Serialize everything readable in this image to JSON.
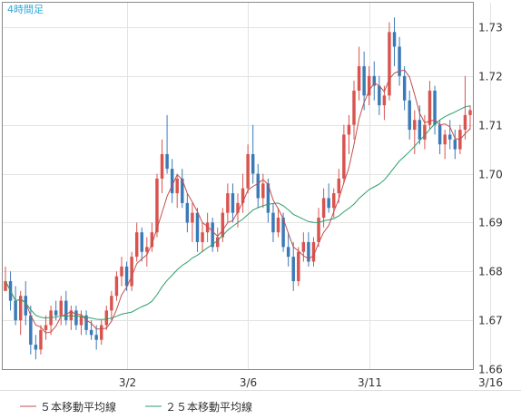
{
  "timeframe_label": "4時間足",
  "legend": [
    {
      "label": "５本移動平均線",
      "color": "#c0504d"
    },
    {
      "label": "２５本移動平均線",
      "color": "#2e9e6b"
    }
  ],
  "colors": {
    "bull": "#d9534f",
    "bear": "#3a7ab8",
    "grid": "#e3e3e3",
    "frame": "#888888"
  },
  "chart_data": {
    "type": "candlestick",
    "ylim": [
      1.66,
      1.735
    ],
    "yticks": [
      1.66,
      1.67,
      1.68,
      1.69,
      1.7,
      1.71,
      1.72,
      1.73
    ],
    "x_tick_labels": [
      {
        "label": "3/2",
        "index": 24
      },
      {
        "label": "3/6",
        "index": 48
      },
      {
        "label": "3/11",
        "index": 72
      },
      {
        "label": "3/16",
        "index": 96
      }
    ],
    "candles": [
      [
        1.676,
        1.681,
        1.676,
        1.678
      ],
      [
        1.678,
        1.68,
        1.672,
        1.674
      ],
      [
        1.674,
        1.677,
        1.669,
        1.67
      ],
      [
        1.67,
        1.676,
        1.667,
        1.675
      ],
      [
        1.675,
        1.678,
        1.669,
        1.671
      ],
      [
        1.671,
        1.673,
        1.663,
        1.665
      ],
      [
        1.665,
        1.667,
        1.662,
        1.664
      ],
      [
        1.664,
        1.669,
        1.663,
        1.668
      ],
      [
        1.668,
        1.671,
        1.666,
        1.669
      ],
      [
        1.669,
        1.673,
        1.667,
        1.672
      ],
      [
        1.672,
        1.674,
        1.67,
        1.671
      ],
      [
        1.671,
        1.675,
        1.669,
        1.674
      ],
      [
        1.674,
        1.676,
        1.669,
        1.67
      ],
      [
        1.67,
        1.673,
        1.668,
        1.672
      ],
      [
        1.672,
        1.673,
        1.668,
        1.669
      ],
      [
        1.669,
        1.672,
        1.667,
        1.671
      ],
      [
        1.671,
        1.672,
        1.667,
        1.668
      ],
      [
        1.668,
        1.67,
        1.666,
        1.667
      ],
      [
        1.667,
        1.669,
        1.664,
        1.666
      ],
      [
        1.666,
        1.67,
        1.665,
        1.669
      ],
      [
        1.669,
        1.673,
        1.668,
        1.672
      ],
      [
        1.672,
        1.676,
        1.67,
        1.675
      ],
      [
        1.675,
        1.68,
        1.674,
        1.679
      ],
      [
        1.679,
        1.683,
        1.677,
        1.681
      ],
      [
        1.681,
        1.682,
        1.676,
        1.677
      ],
      [
        1.677,
        1.684,
        1.676,
        1.683
      ],
      [
        1.683,
        1.69,
        1.682,
        1.688
      ],
      [
        1.688,
        1.689,
        1.682,
        1.684
      ],
      [
        1.684,
        1.687,
        1.681,
        1.685
      ],
      [
        1.685,
        1.69,
        1.684,
        1.688
      ],
      [
        1.688,
        1.7,
        1.687,
        1.699
      ],
      [
        1.699,
        1.707,
        1.696,
        1.704
      ],
      [
        1.704,
        1.712,
        1.7,
        1.701
      ],
      [
        1.701,
        1.703,
        1.694,
        1.696
      ],
      [
        1.696,
        1.7,
        1.693,
        1.699
      ],
      [
        1.699,
        1.701,
        1.693,
        1.694
      ],
      [
        1.694,
        1.696,
        1.688,
        1.69
      ],
      [
        1.69,
        1.694,
        1.686,
        1.692
      ],
      [
        1.692,
        1.693,
        1.684,
        1.686
      ],
      [
        1.686,
        1.69,
        1.684,
        1.688
      ],
      [
        1.688,
        1.692,
        1.686,
        1.69
      ],
      [
        1.69,
        1.691,
        1.684,
        1.685
      ],
      [
        1.685,
        1.689,
        1.684,
        1.687
      ],
      [
        1.687,
        1.693,
        1.686,
        1.692
      ],
      [
        1.692,
        1.698,
        1.69,
        1.696
      ],
      [
        1.696,
        1.698,
        1.69,
        1.692
      ],
      [
        1.692,
        1.696,
        1.689,
        1.694
      ],
      [
        1.694,
        1.7,
        1.692,
        1.697
      ],
      [
        1.697,
        1.706,
        1.696,
        1.704
      ],
      [
        1.704,
        1.71,
        1.698,
        1.7
      ],
      [
        1.7,
        1.702,
        1.693,
        1.695
      ],
      [
        1.695,
        1.7,
        1.693,
        1.698
      ],
      [
        1.698,
        1.699,
        1.69,
        1.692
      ],
      [
        1.692,
        1.694,
        1.686,
        1.688
      ],
      [
        1.688,
        1.693,
        1.687,
        1.691
      ],
      [
        1.691,
        1.692,
        1.684,
        1.685
      ],
      [
        1.685,
        1.688,
        1.681,
        1.683
      ],
      [
        1.683,
        1.686,
        1.676,
        1.678
      ],
      [
        1.678,
        1.685,
        1.677,
        1.684
      ],
      [
        1.684,
        1.688,
        1.682,
        1.686
      ],
      [
        1.686,
        1.688,
        1.681,
        1.682
      ],
      [
        1.682,
        1.687,
        1.681,
        1.686
      ],
      [
        1.686,
        1.693,
        1.685,
        1.691
      ],
      [
        1.691,
        1.697,
        1.689,
        1.695
      ],
      [
        1.695,
        1.698,
        1.692,
        1.693
      ],
      [
        1.693,
        1.697,
        1.691,
        1.696
      ],
      [
        1.696,
        1.701,
        1.694,
        1.699
      ],
      [
        1.699,
        1.71,
        1.698,
        1.708
      ],
      [
        1.708,
        1.712,
        1.704,
        1.71
      ],
      [
        1.71,
        1.719,
        1.707,
        1.717
      ],
      [
        1.717,
        1.726,
        1.715,
        1.722
      ],
      [
        1.722,
        1.725,
        1.713,
        1.716
      ],
      [
        1.716,
        1.722,
        1.714,
        1.72
      ],
      [
        1.72,
        1.723,
        1.715,
        1.718
      ],
      [
        1.718,
        1.72,
        1.712,
        1.714
      ],
      [
        1.714,
        1.718,
        1.711,
        1.716
      ],
      [
        1.716,
        1.731,
        1.715,
        1.729
      ],
      [
        1.729,
        1.732,
        1.722,
        1.726
      ],
      [
        1.726,
        1.728,
        1.718,
        1.72
      ],
      [
        1.72,
        1.722,
        1.713,
        1.715
      ],
      [
        1.715,
        1.717,
        1.707,
        1.709
      ],
      [
        1.709,
        1.713,
        1.704,
        1.711
      ],
      [
        1.711,
        1.714,
        1.706,
        1.707
      ],
      [
        1.707,
        1.712,
        1.705,
        1.71
      ],
      [
        1.71,
        1.719,
        1.709,
        1.717
      ],
      [
        1.717,
        1.718,
        1.708,
        1.71
      ],
      [
        1.71,
        1.711,
        1.704,
        1.706
      ],
      [
        1.706,
        1.709,
        1.703,
        1.708
      ],
      [
        1.708,
        1.711,
        1.705,
        1.707
      ],
      [
        1.707,
        1.709,
        1.703,
        1.705
      ],
      [
        1.705,
        1.71,
        1.704,
        1.709
      ],
      [
        1.709,
        1.72,
        1.707,
        1.712
      ],
      [
        1.712,
        1.714,
        1.709,
        1.713
      ]
    ]
  }
}
